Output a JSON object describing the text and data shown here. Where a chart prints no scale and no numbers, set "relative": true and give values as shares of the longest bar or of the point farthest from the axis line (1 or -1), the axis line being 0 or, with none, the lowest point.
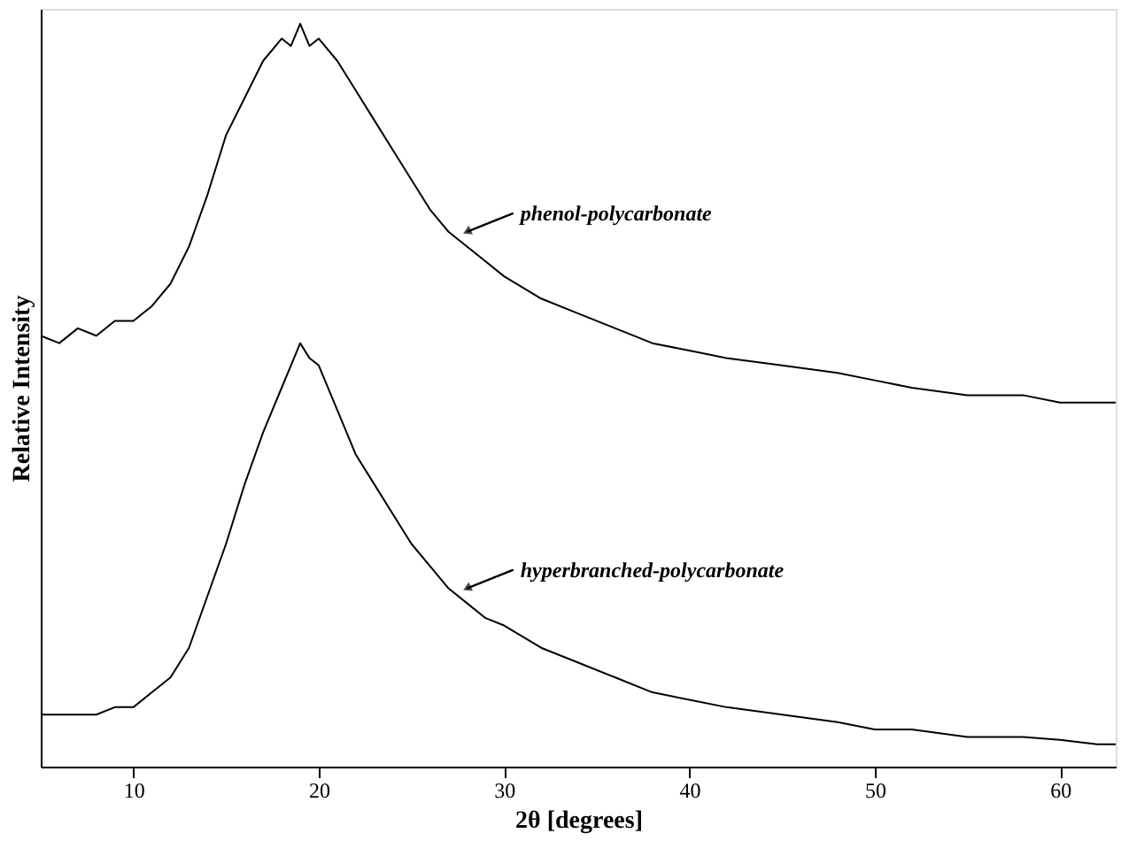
{
  "chart_data": {
    "type": "line",
    "relative": true,
    "xlabel": "2θ [degrees]",
    "ylabel": "Relative Intensity",
    "xlim": [
      5,
      63
    ],
    "xticks": [
      10,
      20,
      30,
      40,
      50,
      60
    ],
    "tick_labels": "x",
    "grid": false,
    "legend": false,
    "marker": "none",
    "line_style": "solid",
    "series": [
      {
        "color": "#000000",
        "x": [
          5,
          6,
          7,
          8,
          9,
          10,
          11,
          12,
          13,
          14,
          15,
          16,
          17,
          18,
          18.5,
          19,
          19.5,
          20,
          21,
          22,
          23,
          24,
          25,
          26,
          27,
          28,
          29,
          30,
          32,
          34,
          36,
          38,
          40,
          42,
          45,
          48,
          50,
          52,
          55,
          58,
          60,
          62,
          63
        ],
        "values": [
          0.58,
          0.57,
          0.59,
          0.58,
          0.6,
          0.6,
          0.62,
          0.65,
          0.7,
          0.77,
          0.85,
          0.9,
          0.95,
          0.98,
          0.97,
          1.0,
          0.97,
          0.98,
          0.95,
          0.91,
          0.87,
          0.83,
          0.79,
          0.75,
          0.72,
          0.7,
          0.68,
          0.66,
          0.63,
          0.61,
          0.59,
          0.57,
          0.56,
          0.55,
          0.54,
          0.53,
          0.52,
          0.51,
          0.5,
          0.5,
          0.49,
          0.49,
          0.49
        ]
      },
      {
        "color": "#000000",
        "x": [
          5,
          6,
          7,
          8,
          9,
          10,
          11,
          12,
          13,
          14,
          15,
          16,
          17,
          18,
          18.5,
          19,
          19.5,
          20,
          21,
          22,
          23,
          24,
          25,
          26,
          27,
          28,
          29,
          30,
          32,
          34,
          36,
          38,
          40,
          42,
          45,
          48,
          50,
          52,
          55,
          58,
          60,
          62,
          63
        ],
        "values": [
          0.07,
          0.07,
          0.07,
          0.07,
          0.08,
          0.08,
          0.1,
          0.12,
          0.16,
          0.23,
          0.3,
          0.38,
          0.45,
          0.51,
          0.54,
          0.57,
          0.55,
          0.54,
          0.48,
          0.42,
          0.38,
          0.34,
          0.3,
          0.27,
          0.24,
          0.22,
          0.2,
          0.19,
          0.16,
          0.14,
          0.12,
          0.1,
          0.09,
          0.08,
          0.07,
          0.06,
          0.05,
          0.05,
          0.04,
          0.04,
          0.036,
          0.03,
          0.03
        ]
      }
    ],
    "annotations": [
      {
        "text": "phenol-polycarbonate",
        "x": 28,
        "y": 0.72
      },
      {
        "text": "hyperbranched-polycarbonate",
        "x": 28,
        "y": 0.24
      }
    ]
  }
}
